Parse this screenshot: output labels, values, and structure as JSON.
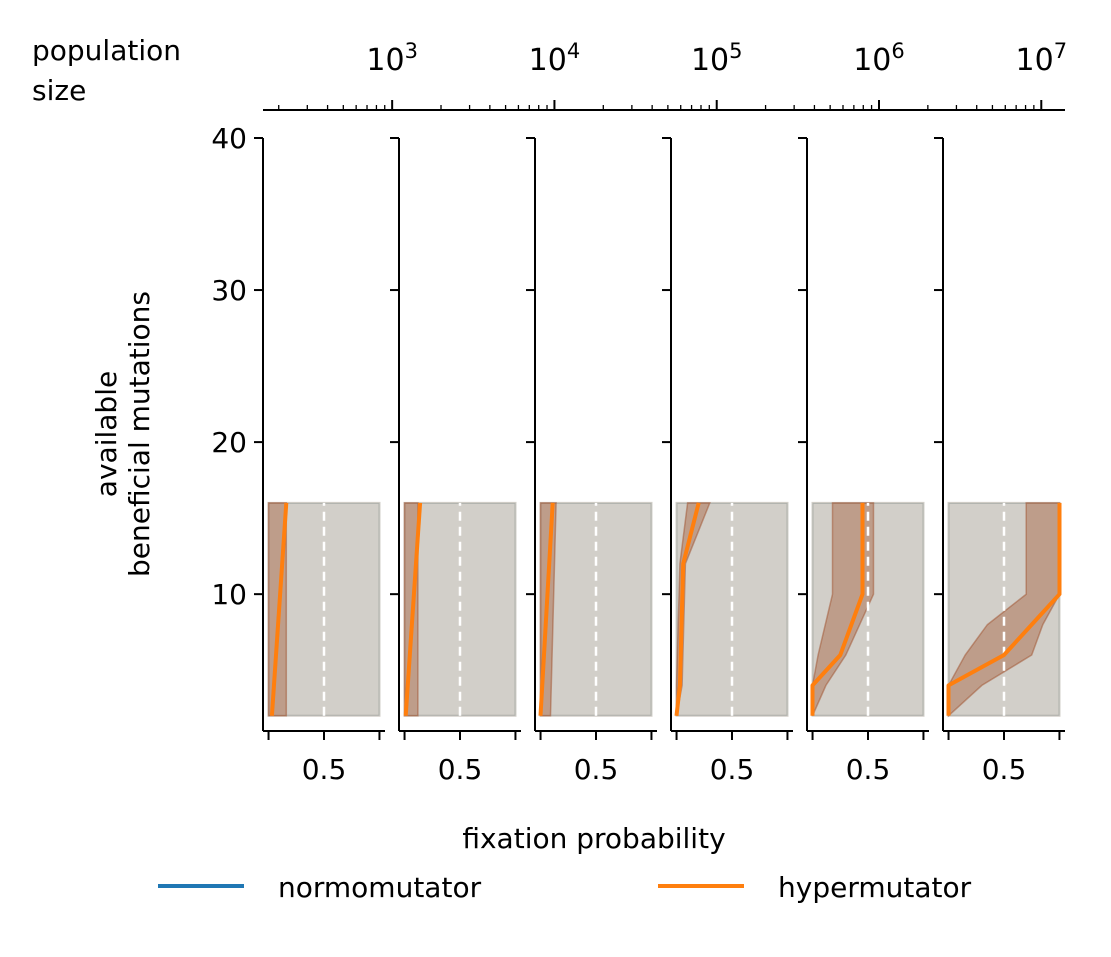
{
  "chart_data": {
    "type": "line",
    "top_axis": {
      "label": "population\nsize",
      "scale": "log",
      "range": [
        160,
        14000000
      ],
      "ticks": [
        {
          "value": 1000,
          "base": "10",
          "exp": "3"
        },
        {
          "value": 10000,
          "base": "10",
          "exp": "4"
        },
        {
          "value": 100000,
          "base": "10",
          "exp": "5"
        },
        {
          "value": 1000000,
          "base": "10",
          "exp": "6"
        },
        {
          "value": 10000000,
          "base": "10",
          "exp": "7"
        }
      ]
    },
    "ylabel": "available\nbeneficial mutations",
    "ylim": [
      1,
      40
    ],
    "yticks": [
      10,
      20,
      30,
      40
    ],
    "xlabel": "fixation probability",
    "xlim": [
      -0.05,
      1.05
    ],
    "xtick_label": "0.5",
    "xtick_value": 0.5,
    "legend": [
      {
        "name": "normomutator",
        "color": "#1f77b4"
      },
      {
        "name": "hypermutator",
        "color": "#ff7f0e"
      }
    ],
    "colors": {
      "normomutator": "#1f77b4",
      "hypermutator": "#ff7f0e",
      "ci_overlap": "#a0522d"
    },
    "panels": [
      {
        "population_size": 1000,
        "normomutator": {
          "y": [
            2,
            16
          ],
          "mean": [
            0,
            0
          ],
          "ci_low": [
            0,
            0
          ],
          "ci_high": [
            1,
            1
          ]
        },
        "hypermutator": {
          "y": [
            2,
            16
          ],
          "mean": [
            0.03,
            0.16
          ],
          "ci_low": [
            0,
            0
          ],
          "ci_high": [
            0.16,
            0.16
          ]
        }
      },
      {
        "population_size": 10000,
        "normomutator": {
          "y": [
            2,
            16
          ],
          "mean": [
            0,
            0
          ],
          "ci_low": [
            0,
            0
          ],
          "ci_high": [
            1,
            1
          ]
        },
        "hypermutator": {
          "y": [
            2,
            16
          ],
          "mean": [
            0.01,
            0.14
          ],
          "ci_low": [
            0,
            0
          ],
          "ci_high": [
            0.12,
            0.12
          ]
        }
      },
      {
        "population_size": 100000,
        "normomutator": {
          "y": [
            2,
            16
          ],
          "mean": [
            0,
            0
          ],
          "ci_low": [
            0,
            0
          ],
          "ci_high": [
            1,
            1
          ]
        },
        "hypermutator": {
          "y": [
            2,
            16
          ],
          "mean": [
            0,
            0.11
          ],
          "ci_low": [
            0,
            0
          ],
          "ci_high": [
            0.09,
            0.14
          ]
        }
      },
      {
        "population_size": 1000000,
        "normomutator": {
          "y": [
            2,
            16
          ],
          "mean": [
            0,
            0
          ],
          "ci_low": [
            0,
            0
          ],
          "ci_high": [
            1,
            1
          ]
        },
        "hypermutator": {
          "y": [
            2,
            4,
            12,
            16
          ],
          "mean": [
            0,
            0.03,
            0.06,
            0.2
          ],
          "ci_low": [
            0,
            0,
            0.03,
            0.1
          ],
          "ci_high": [
            0,
            0.05,
            0.08,
            0.3
          ]
        }
      },
      {
        "population_size": 10000000,
        "normomutator": {
          "y": [
            2,
            16
          ],
          "mean": [
            0,
            0
          ],
          "ci_low": [
            0,
            0
          ],
          "ci_high": [
            1,
            1
          ]
        },
        "hypermutator": {
          "y": [
            2,
            4,
            6,
            10,
            16
          ],
          "mean": [
            0,
            0,
            0.25,
            0.45,
            0.45
          ],
          "ci_low": [
            0,
            0,
            0.05,
            0.18,
            0.18
          ],
          "ci_high": [
            0,
            0.12,
            0.3,
            0.55,
            0.55
          ]
        }
      },
      {
        "population_size": 10000000,
        "normomutator": {
          "y": [
            2,
            16
          ],
          "mean": [
            0,
            0
          ],
          "ci_low": [
            0,
            0
          ],
          "ci_high": [
            1,
            1
          ]
        },
        "hypermutator": {
          "y": [
            2,
            4,
            6,
            8,
            10,
            16
          ],
          "mean": [
            0,
            0,
            0.5,
            0.75,
            1,
            1
          ],
          "ci_low": [
            0,
            0,
            0.15,
            0.35,
            0.7,
            0.7
          ],
          "ci_high": [
            0,
            0.3,
            0.75,
            0.85,
            1,
            1
          ]
        }
      }
    ]
  }
}
